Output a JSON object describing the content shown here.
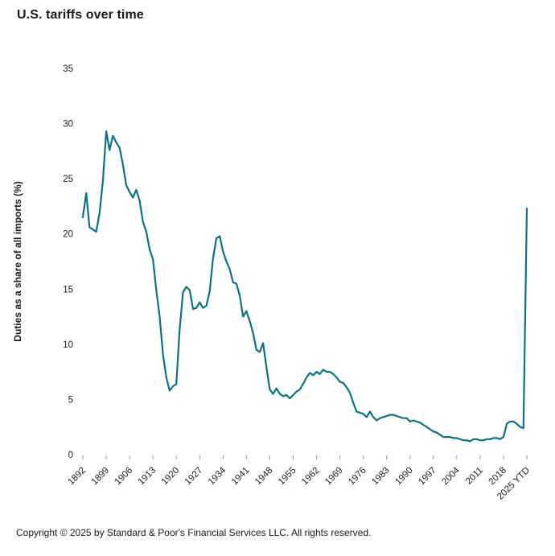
{
  "page": {
    "title": "U.S. tariffs over time",
    "copyright": "Copyright © 2025 by Standard & Poor's Financial Services LLC. All rights reserved."
  },
  "chart_data": {
    "type": "line",
    "title": "U.S. tariffs over time",
    "xlabel": "",
    "ylabel": "Duties as a share of all imports (%)",
    "ylim": [
      0,
      35
    ],
    "yticks": [
      0,
      5,
      10,
      15,
      20,
      25,
      30,
      35
    ],
    "xticks": [
      1892,
      1899,
      1906,
      1913,
      1920,
      1927,
      1934,
      1941,
      1948,
      1955,
      1962,
      1969,
      1976,
      1983,
      1990,
      1997,
      2004,
      2011,
      2018,
      2025
    ],
    "xtick_labels": [
      "1892",
      "1899",
      "1906",
      "1913",
      "1920",
      "1927",
      "1934",
      "1941",
      "1948",
      "1955",
      "1962",
      "1969",
      "1976",
      "1983",
      "1990",
      "1997",
      "2004",
      "2011",
      "2018",
      "2025 YTD"
    ],
    "grid": false,
    "legend": false,
    "line_color": "#0e7183",
    "series": [
      {
        "name": "Duties as a share of all imports (%)",
        "x": [
          1892,
          1893,
          1894,
          1895,
          1896,
          1897,
          1898,
          1899,
          1900,
          1901,
          1902,
          1903,
          1904,
          1905,
          1906,
          1907,
          1908,
          1909,
          1910,
          1911,
          1912,
          1913,
          1914,
          1915,
          1916,
          1917,
          1918,
          1919,
          1920,
          1921,
          1922,
          1923,
          1924,
          1925,
          1926,
          1927,
          1928,
          1929,
          1930,
          1931,
          1932,
          1933,
          1934,
          1935,
          1936,
          1937,
          1938,
          1939,
          1940,
          1941,
          1942,
          1943,
          1944,
          1945,
          1946,
          1947,
          1948,
          1949,
          1950,
          1951,
          1952,
          1953,
          1954,
          1955,
          1956,
          1957,
          1958,
          1959,
          1960,
          1961,
          1962,
          1963,
          1964,
          1965,
          1966,
          1967,
          1968,
          1969,
          1970,
          1971,
          1972,
          1973,
          1974,
          1975,
          1976,
          1977,
          1978,
          1979,
          1980,
          1981,
          1982,
          1983,
          1984,
          1985,
          1986,
          1987,
          1988,
          1989,
          1990,
          1991,
          1992,
          1993,
          1994,
          1995,
          1996,
          1997,
          1998,
          1999,
          2000,
          2001,
          2002,
          2003,
          2004,
          2005,
          2006,
          2007,
          2008,
          2009,
          2010,
          2011,
          2012,
          2013,
          2014,
          2015,
          2016,
          2017,
          2018,
          2019,
          2020,
          2021,
          2022,
          2023,
          2024,
          2025
        ],
        "values": [
          21.5,
          23.7,
          20.6,
          20.4,
          20.2,
          21.9,
          24.8,
          29.3,
          27.6,
          28.9,
          28.3,
          27.8,
          26.3,
          24.4,
          23.8,
          23.3,
          24.0,
          23.0,
          21.1,
          20.2,
          18.6,
          17.7,
          14.9,
          12.5,
          9.1,
          7.0,
          5.8,
          6.2,
          6.4,
          11.4,
          14.7,
          15.2,
          14.9,
          13.2,
          13.3,
          13.8,
          13.3,
          13.5,
          14.8,
          17.8,
          19.6,
          19.8,
          18.4,
          17.5,
          16.8,
          15.6,
          15.5,
          14.4,
          12.5,
          13.0,
          12.1,
          11.0,
          9.5,
          9.3,
          10.1,
          7.9,
          5.9,
          5.5,
          6.0,
          5.5,
          5.3,
          5.4,
          5.1,
          5.4,
          5.7,
          5.9,
          6.4,
          7.0,
          7.4,
          7.2,
          7.5,
          7.3,
          7.7,
          7.5,
          7.5,
          7.3,
          7.0,
          6.6,
          6.5,
          6.1,
          5.6,
          4.7,
          3.9,
          3.8,
          3.7,
          3.4,
          3.9,
          3.4,
          3.1,
          3.3,
          3.4,
          3.5,
          3.6,
          3.6,
          3.5,
          3.4,
          3.3,
          3.3,
          3.0,
          3.1,
          3.0,
          2.9,
          2.7,
          2.5,
          2.3,
          2.1,
          2.0,
          1.8,
          1.6,
          1.6,
          1.6,
          1.5,
          1.5,
          1.4,
          1.3,
          1.3,
          1.2,
          1.4,
          1.4,
          1.3,
          1.3,
          1.4,
          1.4,
          1.5,
          1.5,
          1.4,
          1.6,
          2.8,
          3.0,
          3.0,
          2.8,
          2.5,
          2.4,
          22.3
        ]
      }
    ]
  }
}
